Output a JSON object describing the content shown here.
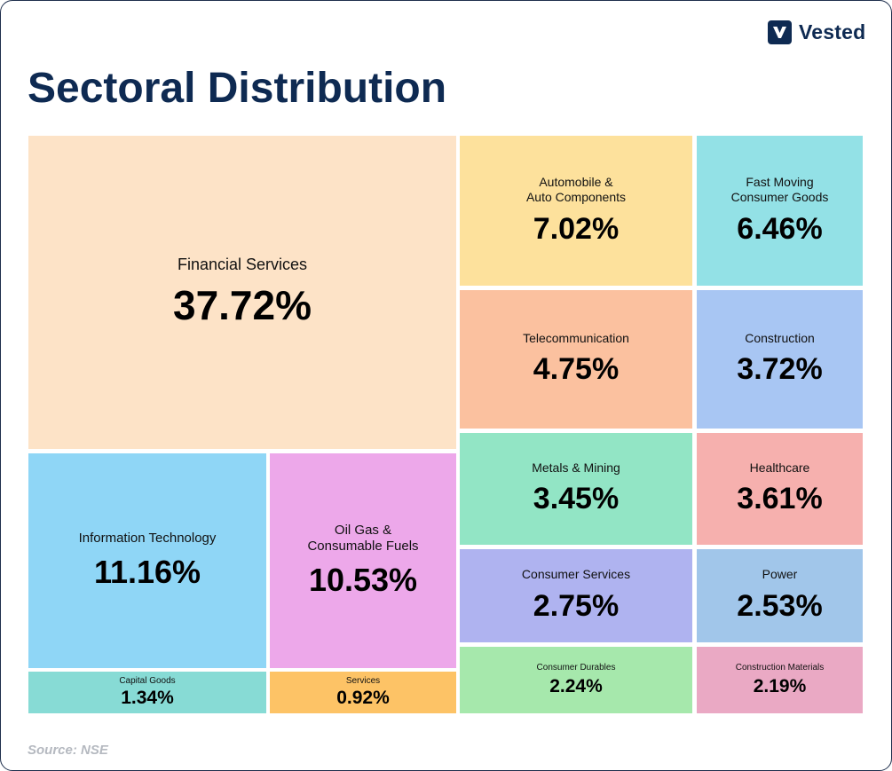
{
  "brand": {
    "name": "Vested"
  },
  "source": "Source: NSE",
  "chart_data": {
    "type": "treemap",
    "title": "Sectoral Distribution",
    "unit": "%",
    "items": [
      {
        "label": "Financial Services",
        "value": 37.72,
        "display": "37.72%",
        "color": "#fde3c7"
      },
      {
        "label": "Information Technology",
        "value": 11.16,
        "display": "11.16%",
        "color": "#8fd6f6"
      },
      {
        "label": "Oil Gas &\nConsumable Fuels",
        "value": 10.53,
        "display": "10.53%",
        "color": "#eda8ea"
      },
      {
        "label": "Capital Goods",
        "value": 1.34,
        "display": "1.34%",
        "color": "#87dbd5"
      },
      {
        "label": "Services",
        "value": 0.92,
        "display": "0.92%",
        "color": "#fdc366"
      },
      {
        "label": "Automobile &\nAuto Components",
        "value": 7.02,
        "display": "7.02%",
        "color": "#fde19c"
      },
      {
        "label": "Fast Moving\nConsumer Goods",
        "value": 6.46,
        "display": "6.46%",
        "color": "#93e1e6"
      },
      {
        "label": "Telecommunication",
        "value": 4.75,
        "display": "4.75%",
        "color": "#fbc19f"
      },
      {
        "label": "Construction",
        "value": 3.72,
        "display": "3.72%",
        "color": "#a8c6f3"
      },
      {
        "label": "Metals & Mining",
        "value": 3.45,
        "display": "3.45%",
        "color": "#92e5c5"
      },
      {
        "label": "Healthcare",
        "value": 3.61,
        "display": "3.61%",
        "color": "#f6b0ae"
      },
      {
        "label": "Consumer Services",
        "value": 2.75,
        "display": "2.75%",
        "color": "#afb3f0"
      },
      {
        "label": "Power",
        "value": 2.53,
        "display": "2.53%",
        "color": "#a1c6ea"
      },
      {
        "label": "Consumer Durables",
        "value": 2.24,
        "display": "2.24%",
        "color": "#a6e8ac"
      },
      {
        "label": "Construction Materials",
        "value": 2.19,
        "display": "2.19%",
        "color": "#eaa9c4"
      }
    ]
  }
}
